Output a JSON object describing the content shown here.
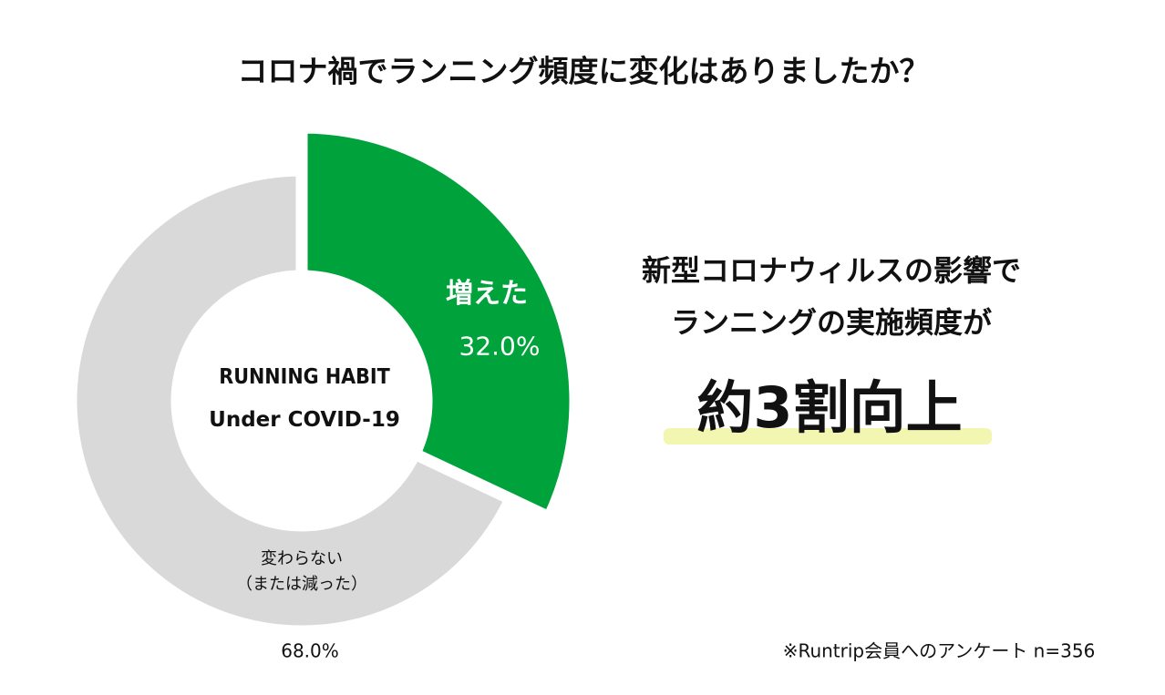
{
  "chart_data": {
    "type": "donut",
    "title": "コロナ禍でランニング頻度に変化はありましたか？",
    "center_text": [
      "RUNNING HABIT",
      "Under COVID-19"
    ],
    "categories": [
      "増えた",
      "変わらない\n（または減った）"
    ],
    "values": [
      32.0,
      68.0
    ],
    "value_labels": [
      "32.0%",
      "68.0%"
    ],
    "colors": [
      "#00a23c",
      "#d9d9d9"
    ],
    "annotations": [
      "新型コロナウィルスの影響で",
      "ランニングの実施頻度が",
      "約3割向上"
    ],
    "footnote": "※Runtrip会員へのアンケート n=356"
  }
}
